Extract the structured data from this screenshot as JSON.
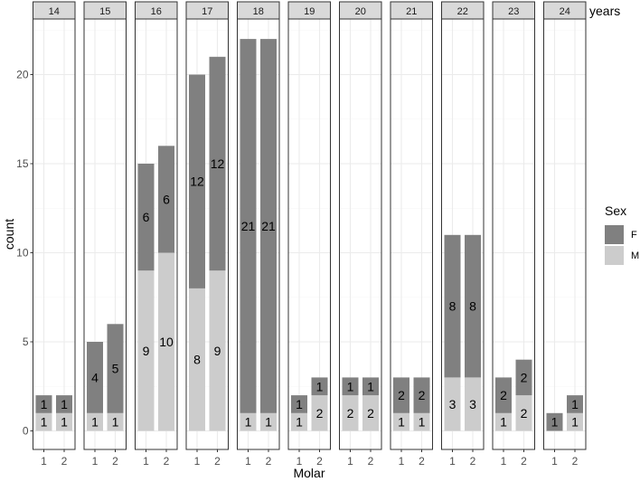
{
  "chart_data": {
    "type": "bar",
    "stacked": true,
    "facet_strip_suffix": "years",
    "xlabel": "Molar",
    "ylabel": "count",
    "ylim": [
      0,
      23
    ],
    "yticks": [
      0,
      5,
      10,
      15,
      20
    ],
    "categories": [
      "1",
      "2"
    ],
    "legend": {
      "title": "Sex",
      "placement": "right",
      "entries": [
        "F",
        "M"
      ]
    },
    "colors": {
      "F": "#808080",
      "M": "#cccccc",
      "panel_bg": "#ffffff",
      "grid_major": "#ebebeb",
      "strip_bg": "#d9d9d9",
      "border": "#333333"
    },
    "grid": true,
    "facets": [
      {
        "label": "14",
        "bars": [
          {
            "molar": "1",
            "M": 1,
            "F": 1
          },
          {
            "molar": "2",
            "M": 1,
            "F": 1
          }
        ]
      },
      {
        "label": "15",
        "bars": [
          {
            "molar": "1",
            "M": 1,
            "F": 4
          },
          {
            "molar": "2",
            "M": 1,
            "F": 5
          }
        ]
      },
      {
        "label": "16",
        "bars": [
          {
            "molar": "1",
            "M": 9,
            "F": 6
          },
          {
            "molar": "2",
            "M": 10,
            "F": 6
          }
        ]
      },
      {
        "label": "17",
        "bars": [
          {
            "molar": "1",
            "M": 8,
            "F": 12
          },
          {
            "molar": "2",
            "M": 9,
            "F": 12
          }
        ]
      },
      {
        "label": "18",
        "bars": [
          {
            "molar": "1",
            "M": 1,
            "F": 21
          },
          {
            "molar": "2",
            "M": 1,
            "F": 21
          }
        ]
      },
      {
        "label": "19",
        "bars": [
          {
            "molar": "1",
            "M": 1,
            "F": 1
          },
          {
            "molar": "2",
            "M": 2,
            "F": 1
          }
        ]
      },
      {
        "label": "20",
        "bars": [
          {
            "molar": "1",
            "M": 2,
            "F": 1
          },
          {
            "molar": "2",
            "M": 2,
            "F": 1
          }
        ]
      },
      {
        "label": "21",
        "bars": [
          {
            "molar": "1",
            "M": 1,
            "F": 2
          },
          {
            "molar": "2",
            "M": 1,
            "F": 2
          }
        ]
      },
      {
        "label": "22",
        "bars": [
          {
            "molar": "1",
            "M": 3,
            "F": 8
          },
          {
            "molar": "2",
            "M": 3,
            "F": 8
          }
        ]
      },
      {
        "label": "23",
        "bars": [
          {
            "molar": "1",
            "M": 1,
            "F": 2
          },
          {
            "molar": "2",
            "M": 2,
            "F": 2
          }
        ]
      },
      {
        "label": "24",
        "bars": [
          {
            "molar": "1",
            "M": 0,
            "F": 1
          },
          {
            "molar": "2",
            "M": 1,
            "F": 1
          }
        ]
      }
    ]
  }
}
